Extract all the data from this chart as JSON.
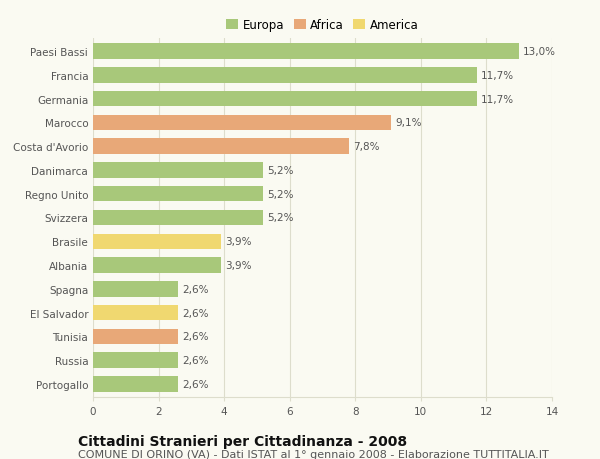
{
  "categories": [
    "Paesi Bassi",
    "Francia",
    "Germania",
    "Marocco",
    "Costa d'Avorio",
    "Danimarca",
    "Regno Unito",
    "Svizzera",
    "Brasile",
    "Albania",
    "Spagna",
    "El Salvador",
    "Tunisia",
    "Russia",
    "Portogallo"
  ],
  "values": [
    13.0,
    11.7,
    11.7,
    9.1,
    7.8,
    5.2,
    5.2,
    5.2,
    3.9,
    3.9,
    2.6,
    2.6,
    2.6,
    2.6,
    2.6
  ],
  "labels": [
    "13,0%",
    "11,7%",
    "11,7%",
    "9,1%",
    "7,8%",
    "5,2%",
    "5,2%",
    "5,2%",
    "3,9%",
    "3,9%",
    "2,6%",
    "2,6%",
    "2,6%",
    "2,6%",
    "2,6%"
  ],
  "continents": [
    "Europa",
    "Europa",
    "Europa",
    "Africa",
    "Africa",
    "Europa",
    "Europa",
    "Europa",
    "America",
    "Europa",
    "Europa",
    "America",
    "Africa",
    "Europa",
    "Europa"
  ],
  "colors": {
    "Europa": "#a8c87a",
    "Africa": "#e8a878",
    "America": "#f0d870"
  },
  "legend_order": [
    "Europa",
    "Africa",
    "America"
  ],
  "xlim": [
    0,
    14
  ],
  "xticks": [
    0,
    2,
    4,
    6,
    8,
    10,
    12,
    14
  ],
  "title": "Cittadini Stranieri per Cittadinanza - 2008",
  "subtitle": "COMUNE DI ORINO (VA) - Dati ISTAT al 1° gennaio 2008 - Elaborazione TUTTITALIA.IT",
  "background_color": "#fafaf2",
  "grid_color": "#ddddcc",
  "bar_height": 0.65,
  "title_fontsize": 10,
  "subtitle_fontsize": 8,
  "label_fontsize": 7.5,
  "tick_fontsize": 7.5,
  "legend_fontsize": 8.5
}
